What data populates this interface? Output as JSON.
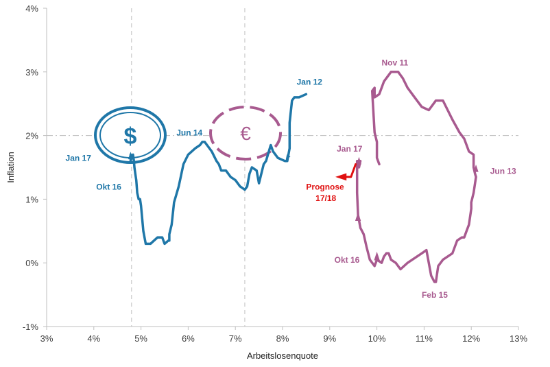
{
  "chart_data": {
    "type": "line",
    "xlabel": "Arbeitslosenquote",
    "ylabel": "Inflation",
    "xlim": [
      3,
      13
    ],
    "ylim": [
      -1,
      4
    ],
    "x_ticks": [
      "3%",
      "4%",
      "5%",
      "6%",
      "7%",
      "8%",
      "9%",
      "10%",
      "11%",
      "12%",
      "13%"
    ],
    "y_ticks": [
      "-1%",
      "0%",
      "1%",
      "2%",
      "3%",
      "4%"
    ],
    "grid": false,
    "legend": "none",
    "reference_lines": {
      "horizontal_y": 2.0,
      "vertical_x": [
        4.8,
        7.2
      ]
    },
    "colors": {
      "us": "#1f77a8",
      "ez": "#a85a8f",
      "forecast": "#e01010",
      "axis": "#bfbfbf",
      "ref": "#bfbfbf"
    },
    "series": [
      {
        "x": [
          8.5,
          8.35,
          8.25,
          8.2,
          8.15,
          8.15,
          8.1,
          8.1,
          8.05,
          7.9,
          7.8,
          7.75,
          7.65,
          7.6,
          7.5,
          7.45,
          7.35,
          7.3,
          7.25,
          7.2,
          7.1,
          7.0,
          6.9,
          6.8,
          6.7,
          6.65,
          6.6,
          6.5,
          6.4,
          6.35,
          6.3,
          6.25,
          6.15,
          6.0,
          5.9,
          5.8,
          5.7,
          5.65,
          5.6,
          5.6,
          5.58,
          5.5,
          5.45,
          5.4,
          5.35,
          5.2,
          5.1,
          5.05,
          5.0,
          4.98,
          4.95,
          4.92,
          4.9,
          4.88,
          4.86,
          4.85,
          4.83,
          4.8,
          4.78,
          4.78
        ],
        "y": [
          2.65,
          2.6,
          2.6,
          2.55,
          2.2,
          1.8,
          1.6,
          1.6,
          1.6,
          1.65,
          1.75,
          1.85,
          1.6,
          1.55,
          1.25,
          1.45,
          1.5,
          1.4,
          1.2,
          1.15,
          1.2,
          1.3,
          1.35,
          1.45,
          1.45,
          1.55,
          1.6,
          1.75,
          1.85,
          1.9,
          1.9,
          1.85,
          1.8,
          1.7,
          1.55,
          1.2,
          0.95,
          0.6,
          0.45,
          0.35,
          0.35,
          0.3,
          0.4,
          0.4,
          0.4,
          0.3,
          0.3,
          0.5,
          0.9,
          1.0,
          1.0,
          1.1,
          1.3,
          1.4,
          1.5,
          1.6,
          1.7,
          1.65,
          1.6,
          1.7
        ]
      },
      {
        "x": [
          10.05,
          10.0,
          10.0,
          9.95,
          9.9,
          9.95,
          9.95,
          10.05,
          10.15,
          10.3,
          10.45,
          10.55,
          10.65,
          10.8,
          10.95,
          11.1,
          11.25,
          11.4,
          11.5,
          11.6,
          11.75,
          11.85,
          11.95,
          12.05,
          12.05,
          12.08,
          12.1,
          12.08,
          12.05,
          12.0,
          12.0,
          11.95,
          11.9,
          11.85,
          11.8,
          11.7,
          11.6,
          11.5,
          11.4,
          11.3,
          11.25,
          11.22,
          11.15,
          11.05,
          10.95,
          10.85,
          10.65,
          10.5,
          10.4,
          10.3,
          10.25,
          10.2,
          10.15,
          10.1,
          10.0,
          9.95,
          9.85,
          9.78,
          9.72,
          9.65,
          9.6,
          9.58,
          9.58,
          9.6,
          9.62,
          9.65
        ],
        "y": [
          1.55,
          1.65,
          1.9,
          2.05,
          2.7,
          2.75,
          2.6,
          2.65,
          2.85,
          3.0,
          3.0,
          2.9,
          2.75,
          2.6,
          2.45,
          2.4,
          2.55,
          2.55,
          2.4,
          2.25,
          2.05,
          1.95,
          1.75,
          1.7,
          1.5,
          1.4,
          1.35,
          1.25,
          1.1,
          0.95,
          0.85,
          0.6,
          0.5,
          0.4,
          0.4,
          0.35,
          0.15,
          0.1,
          0.05,
          -0.05,
          -0.3,
          -0.3,
          -0.2,
          0.2,
          0.15,
          0.1,
          0.0,
          -0.1,
          0.0,
          0.05,
          0.15,
          0.15,
          0.1,
          0.0,
          0.05,
          -0.05,
          0.05,
          0.25,
          0.45,
          0.55,
          0.75,
          1.1,
          1.6,
          1.6,
          1.5,
          1.6
        ]
      },
      {
        "x": [
          9.55,
          9.45,
          9.3
        ],
        "y": [
          1.55,
          1.35,
          1.35
        ]
      }
    ],
    "annotations": [
      {
        "text": "Jan 12",
        "x": 8.3,
        "y": 2.8
      },
      {
        "text": "Jun 14",
        "x": 5.75,
        "y": 2.0
      },
      {
        "text": "Jan 17",
        "x": 3.4,
        "y": 1.6
      },
      {
        "text": "Okt 16",
        "x": 4.05,
        "y": 1.15
      },
      {
        "text": "Nov 11",
        "x": 10.1,
        "y": 3.1
      },
      {
        "text": "Jun 13",
        "x": 12.4,
        "y": 1.4
      },
      {
        "text": "Feb 15",
        "x": 10.95,
        "y": -0.55
      },
      {
        "text": "Okt 16",
        "x": 9.1,
        "y": 0.0
      },
      {
        "text": "Jan 17",
        "x": 9.15,
        "y": 1.75
      },
      {
        "text": "Prognose",
        "x": 8.5,
        "y": 1.15
      },
      {
        "text": "17/18",
        "x": 8.7,
        "y": 0.97
      }
    ]
  }
}
